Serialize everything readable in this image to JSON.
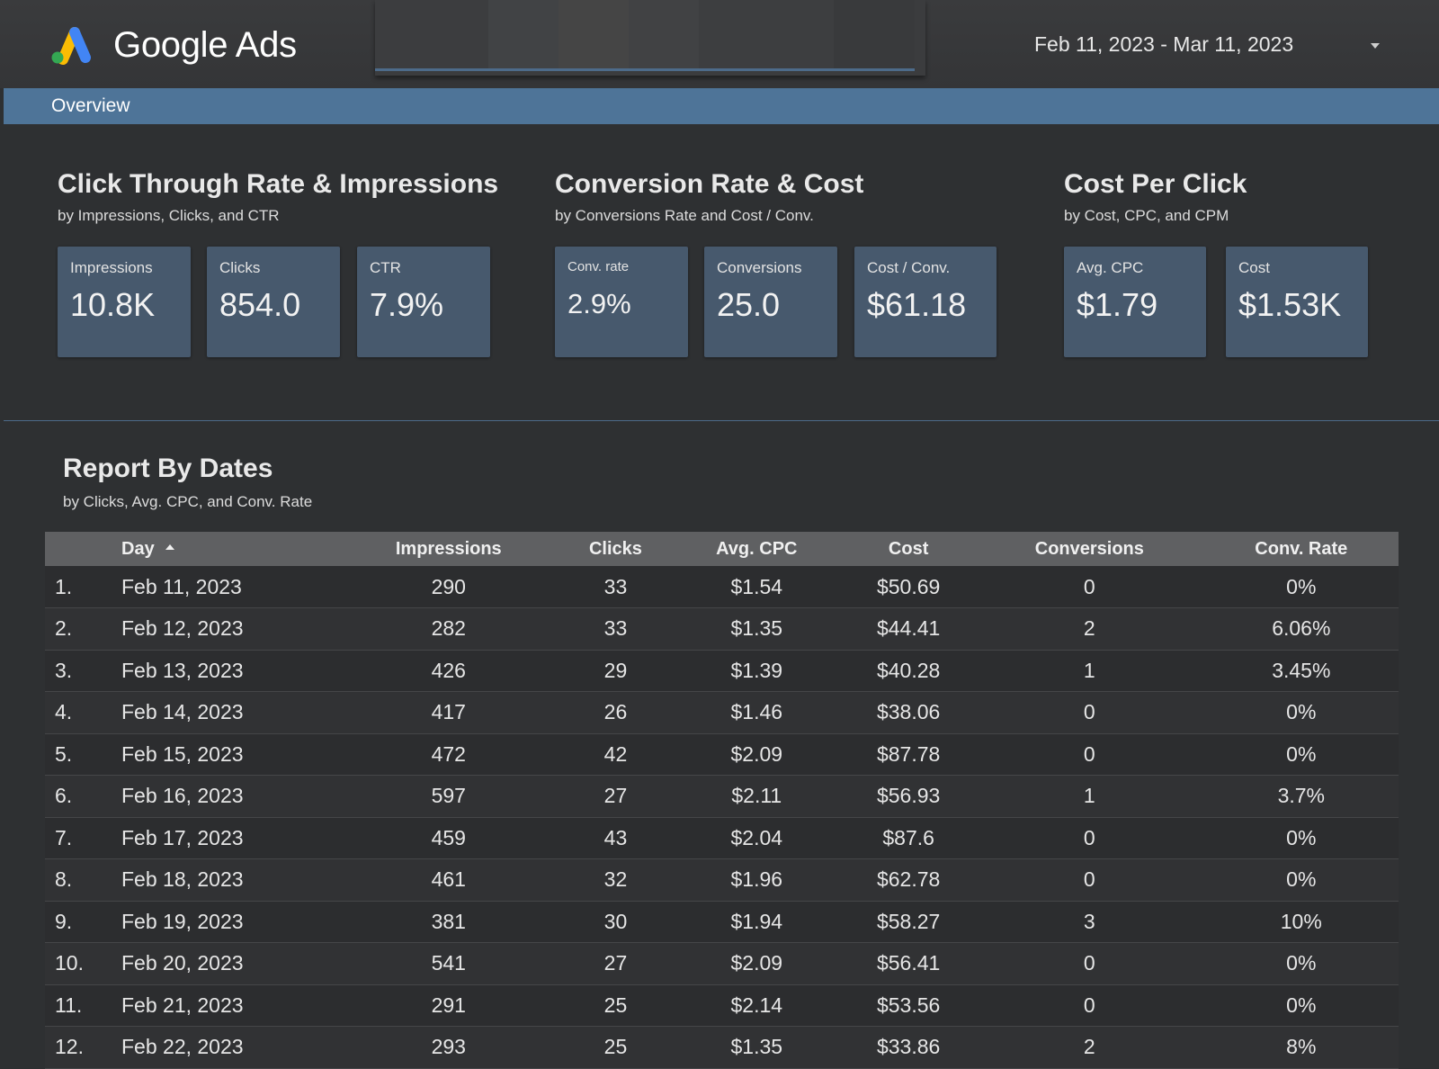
{
  "header": {
    "app_name": "Google Ads",
    "date_range": "Feb 11, 2023 - Mar 11, 2023"
  },
  "nav": {
    "overview_label": "Overview"
  },
  "sections": {
    "ctr": {
      "title": "Click Through Rate & Impressions",
      "subtitle": "by Impressions, Clicks, and CTR",
      "cards": [
        {
          "label": "Impressions",
          "value": "10.8K"
        },
        {
          "label": "Clicks",
          "value": "854.0"
        },
        {
          "label": "CTR",
          "value": "7.9%"
        }
      ]
    },
    "conv": {
      "title": "Conversion Rate & Cost",
      "subtitle": "by Conversions Rate and Cost / Conv.",
      "cards": [
        {
          "label": "Conv. rate",
          "value": "2.9%"
        },
        {
          "label": "Conversions",
          "value": "25.0"
        },
        {
          "label": "Cost / Conv.",
          "value": "$61.18"
        }
      ]
    },
    "cpc": {
      "title": "Cost Per Click",
      "subtitle": "by Cost, CPC, and CPM",
      "cards": [
        {
          "label": "Avg. CPC",
          "value": "$1.79"
        },
        {
          "label": "Cost",
          "value": "$1.53K"
        }
      ]
    }
  },
  "report": {
    "title": "Report By Dates",
    "subtitle": "by Clicks, Avg. CPC, and Conv. Rate",
    "columns": [
      "Day",
      "Impressions",
      "Clicks",
      "Avg. CPC",
      "Cost",
      "Conversions",
      "Conv. Rate"
    ],
    "rows": [
      [
        "1.",
        "Feb 11, 2023",
        "290",
        "33",
        "$1.54",
        "$50.69",
        "0",
        "0%"
      ],
      [
        "2.",
        "Feb 12, 2023",
        "282",
        "33",
        "$1.35",
        "$44.41",
        "2",
        "6.06%"
      ],
      [
        "3.",
        "Feb 13, 2023",
        "426",
        "29",
        "$1.39",
        "$40.28",
        "1",
        "3.45%"
      ],
      [
        "4.",
        "Feb 14, 2023",
        "417",
        "26",
        "$1.46",
        "$38.06",
        "0",
        "0%"
      ],
      [
        "5.",
        "Feb 15, 2023",
        "472",
        "42",
        "$2.09",
        "$87.78",
        "0",
        "0%"
      ],
      [
        "6.",
        "Feb 16, 2023",
        "597",
        "27",
        "$2.11",
        "$56.93",
        "1",
        "3.7%"
      ],
      [
        "7.",
        "Feb 17, 2023",
        "459",
        "43",
        "$2.04",
        "$87.6",
        "0",
        "0%"
      ],
      [
        "8.",
        "Feb 18, 2023",
        "461",
        "32",
        "$1.96",
        "$62.78",
        "0",
        "0%"
      ],
      [
        "9.",
        "Feb 19, 2023",
        "381",
        "30",
        "$1.94",
        "$58.27",
        "3",
        "10%"
      ],
      [
        "10.",
        "Feb 20, 2023",
        "541",
        "27",
        "$2.09",
        "$56.41",
        "0",
        "0%"
      ],
      [
        "11.",
        "Feb 21, 2023",
        "291",
        "25",
        "$2.14",
        "$53.56",
        "0",
        "0%"
      ],
      [
        "12.",
        "Feb 22, 2023",
        "293",
        "25",
        "$1.35",
        "$33.86",
        "2",
        "8%"
      ]
    ]
  },
  "colors": {
    "background": "#2e3032",
    "overview_bar": "#4e7498",
    "kpi_card": "#47596d",
    "table_header": "#5f6062",
    "logo_blue": "#4285f4",
    "logo_yellow": "#fbbc04",
    "logo_green": "#34a853"
  },
  "icons": {
    "logo": "google-ads-logo-icon",
    "date_dropdown": "caret-down-icon",
    "sort": "sort-ascending-icon"
  }
}
